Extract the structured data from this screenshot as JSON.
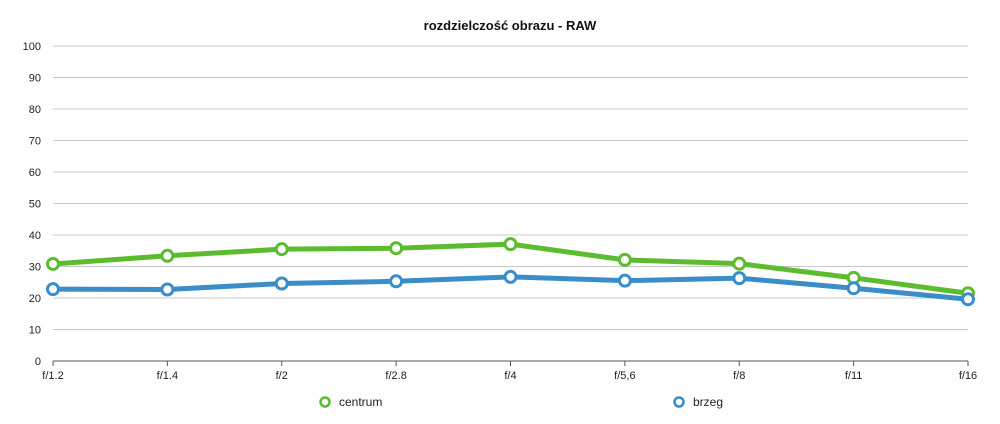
{
  "chart_data": {
    "type": "line",
    "title": "rozdzielczość obrazu - RAW",
    "xlabel": "",
    "ylabel": "",
    "ylim": [
      0,
      100
    ],
    "yticks": [
      0,
      10,
      20,
      30,
      40,
      50,
      60,
      70,
      80,
      90,
      100
    ],
    "categories": [
      "f/1.2",
      "f/1.4",
      "f/2",
      "f/2.8",
      "f/4",
      "f/5,6",
      "f/8",
      "f/11",
      "f/16"
    ],
    "grid": true,
    "legend_position": "bottom",
    "series": [
      {
        "name": "centrum",
        "color": "#5dbb2f",
        "values": [
          30.8,
          33.4,
          35.5,
          35.8,
          37.1,
          32.1,
          30.9,
          26.4,
          21.5
        ]
      },
      {
        "name": "brzeg",
        "color": "#3a8dc8",
        "values": [
          22.8,
          22.7,
          24.6,
          25.3,
          26.7,
          25.5,
          26.3,
          23.1,
          19.6
        ]
      }
    ]
  }
}
